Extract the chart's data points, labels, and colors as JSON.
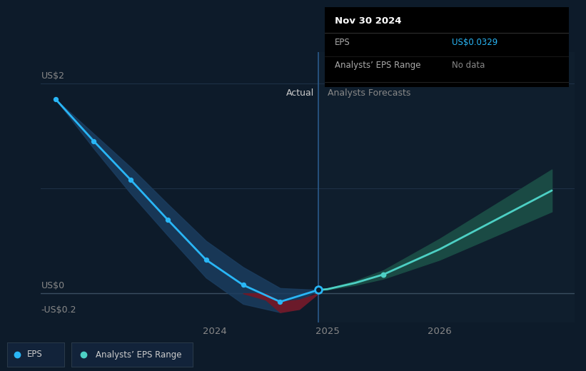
{
  "bg_color": "#0d1b2a",
  "bg_color_right": "#0f1e2d",
  "tooltip_bg": "#000000",
  "ylabel_us2": "US$2",
  "ylabel_us0": "US$0",
  "ylabel_neg02": "-US$0.2",
  "ylim": [
    -0.28,
    2.3
  ],
  "actual_label": "Actual",
  "forecast_label": "Analysts Forecasts",
  "divider_x": 2024.92,
  "xlim_left": 2022.45,
  "xlim_right": 2027.2,
  "tooltip_date": "Nov 30 2024",
  "tooltip_eps_label": "EPS",
  "tooltip_eps_value": "US$0.0329",
  "tooltip_range_label": "Analysts’ EPS Range",
  "tooltip_range_value": "No data",
  "eps_color": "#29b6f6",
  "eps_dot_color": "#29b6f6",
  "forecast_line_color": "#4dd0c4",
  "forecast_band_color": "#1a4a44",
  "actual_band_color": "#1b3d5f",
  "red_band_color": "#6b1a2a",
  "divider_line_color": "#2a5a8a",
  "grid_color": "#1e3045",
  "zero_line_color": "#3a4e60",
  "actual_eps_x": [
    2022.58,
    2022.92,
    2023.25,
    2023.58,
    2023.92,
    2024.25,
    2024.58,
    2024.92
  ],
  "actual_eps_y": [
    1.85,
    1.45,
    1.08,
    0.7,
    0.32,
    0.08,
    -0.08,
    0.033
  ],
  "actual_band_upper_y": [
    1.85,
    1.52,
    1.2,
    0.85,
    0.5,
    0.25,
    0.05,
    0.033
  ],
  "actual_band_lower_y": [
    1.85,
    1.38,
    0.95,
    0.55,
    0.15,
    -0.1,
    -0.18,
    0.033
  ],
  "red_band_x": [
    2024.25,
    2024.45,
    2024.58,
    2024.75,
    2024.92
  ],
  "red_band_upper": [
    0.08,
    0.02,
    -0.08,
    -0.06,
    0.033
  ],
  "red_band_lower": [
    0.08,
    -0.06,
    -0.18,
    -0.15,
    0.033
  ],
  "forecast_x": [
    2024.92,
    2025.0,
    2025.25,
    2025.5,
    2026.0,
    2026.5,
    2027.0
  ],
  "forecast_y": [
    0.033,
    0.04,
    0.1,
    0.18,
    0.42,
    0.7,
    0.98
  ],
  "forecast_upper": [
    0.033,
    0.045,
    0.12,
    0.22,
    0.52,
    0.85,
    1.18
  ],
  "forecast_lower": [
    0.033,
    0.035,
    0.08,
    0.14,
    0.32,
    0.55,
    0.78
  ],
  "forecast_dot_x": 2025.5,
  "forecast_dot_y": 0.18,
  "xticks": [
    2024.0,
    2025.0,
    2026.0
  ],
  "xtick_labels": [
    "2024",
    "2025",
    "2026"
  ],
  "legend_eps_color": "#29b6f6",
  "legend_forecast_color": "#4dd0c4",
  "legend_bg": "#12233a",
  "legend_edge": "#2a3a4a",
  "text_color_light": "#cccccc",
  "text_color_gray": "#888888",
  "text_color_white": "#ffffff"
}
